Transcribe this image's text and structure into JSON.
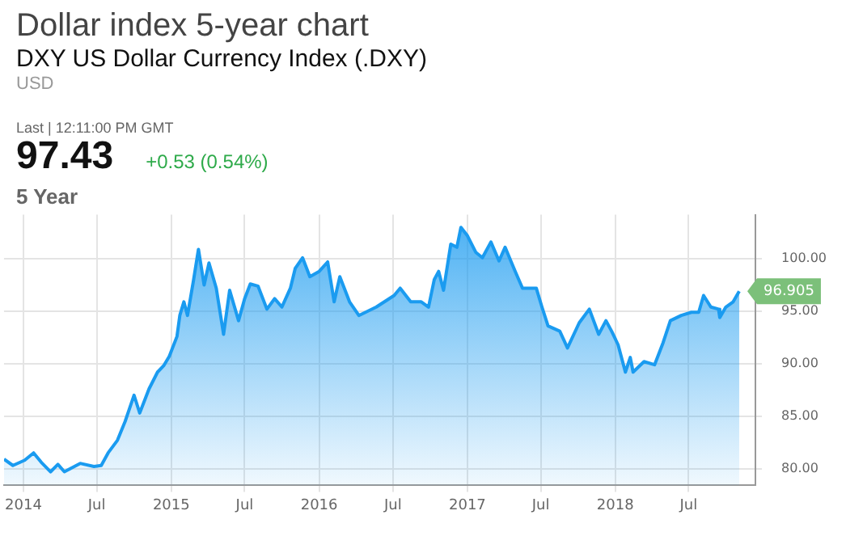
{
  "chart_data": {
    "type": "area",
    "title": "Dollar index 5-year chart",
    "subtitle": "DXY US Dollar Currency Index (.DXY)",
    "annotations": [
      "USD",
      "Last | 12:11:00 PM GMT",
      "97.43",
      "+0.53 (0.54%)",
      "5 Year",
      {
        "text": "96.905",
        "x": "2018-11-03",
        "y": 96.905
      }
    ],
    "series": [
      {
        "color": "#1a9bf0",
        "x": [
          "2013-11-14",
          "2013-12-06",
          "2014-01-04",
          "2014-01-26",
          "2014-02-14",
          "2014-03-09",
          "2014-03-27",
          "2014-04-12",
          "2014-05-21",
          "2014-06-24",
          "2014-07-12",
          "2014-07-29",
          "2014-08-21",
          "2014-09-09",
          "2014-10-01",
          "2014-10-15",
          "2014-11-07",
          "2014-11-28",
          "2014-12-13",
          "2014-12-27",
          "2015-01-15",
          "2015-01-22",
          "2015-02-01",
          "2015-02-10",
          "2015-02-25",
          "2015-03-09",
          "2015-03-23",
          "2015-04-04",
          "2015-04-22",
          "2015-05-10",
          "2015-05-25",
          "2015-06-16",
          "2015-07-01",
          "2015-07-15",
          "2015-08-03",
          "2015-08-25",
          "2015-09-13",
          "2015-10-01",
          "2015-10-22",
          "2015-11-03",
          "2015-11-21",
          "2015-12-09",
          "2016-01-01",
          "2016-01-22",
          "2016-02-07",
          "2016-02-21",
          "2016-03-16",
          "2016-04-08",
          "2016-05-21",
          "2016-07-04",
          "2016-07-19",
          "2016-08-14",
          "2016-09-09",
          "2016-09-27",
          "2016-10-11",
          "2016-10-22",
          "2016-11-03",
          "2016-11-21",
          "2016-12-06",
          "2016-12-16",
          "2017-01-01",
          "2017-01-22",
          "2017-02-07",
          "2017-02-28",
          "2017-03-20",
          "2017-04-04",
          "2017-04-29",
          "2017-05-17",
          "2017-06-20",
          "2017-07-04",
          "2017-07-19",
          "2017-08-17",
          "2017-09-05",
          "2017-10-04",
          "2017-10-29",
          "2017-11-21",
          "2017-12-09",
          "2017-12-23",
          "2018-01-08",
          "2018-01-26",
          "2018-02-07",
          "2018-02-14",
          "2018-03-13",
          "2018-04-08",
          "2018-04-29",
          "2018-05-17",
          "2018-06-13",
          "2018-07-08",
          "2018-07-26",
          "2018-08-07",
          "2018-08-25",
          "2018-09-13",
          "2018-09-16",
          "2018-10-01",
          "2018-10-19",
          "2018-11-03"
        ],
        "values": [
          80.9,
          80.3,
          80.8,
          81.5,
          80.6,
          79.7,
          80.4,
          79.7,
          80.5,
          80.2,
          80.3,
          81.5,
          82.7,
          84.5,
          87.0,
          85.3,
          87.6,
          89.2,
          89.8,
          90.7,
          92.6,
          94.6,
          95.9,
          94.6,
          98.0,
          100.9,
          97.5,
          99.6,
          97.2,
          92.8,
          97.0,
          94.1,
          96.2,
          97.6,
          97.4,
          95.2,
          96.2,
          95.4,
          97.2,
          99.1,
          100.1,
          98.3,
          98.8,
          99.7,
          95.9,
          98.3,
          95.9,
          94.6,
          95.4,
          96.5,
          97.2,
          95.9,
          95.9,
          95.4,
          98.0,
          98.8,
          97.0,
          101.4,
          101.1,
          103.0,
          102.2,
          100.6,
          100.1,
          101.6,
          99.8,
          101.1,
          98.8,
          97.2,
          97.2,
          95.4,
          93.6,
          93.1,
          91.5,
          93.9,
          95.2,
          92.8,
          94.1,
          93.1,
          91.8,
          89.2,
          90.6,
          89.2,
          90.2,
          89.9,
          92.0,
          94.1,
          94.6,
          94.9,
          94.9,
          96.5,
          95.4,
          95.2,
          94.4,
          95.4,
          95.9,
          96.9
        ]
      }
    ],
    "xlim": [
      "2013-11-14",
      "2018-12-13"
    ],
    "xticks": [
      {
        "value": "2014-01-01",
        "label": "2014"
      },
      {
        "value": "2014-07-01",
        "label": "Jul"
      },
      {
        "value": "2015-01-01",
        "label": "2015"
      },
      {
        "value": "2015-07-01",
        "label": "Jul"
      },
      {
        "value": "2016-01-01",
        "label": "2016"
      },
      {
        "value": "2016-07-01",
        "label": "Jul"
      },
      {
        "value": "2017-01-01",
        "label": "2017"
      },
      {
        "value": "2017-07-01",
        "label": "Jul"
      },
      {
        "value": "2018-01-01",
        "label": "2018"
      },
      {
        "value": "2018-07-01",
        "label": "Jul"
      }
    ],
    "ylim": [
      78.4,
      104.2
    ],
    "yticks": [
      {
        "value": 80,
        "label": "80.00"
      },
      {
        "value": 85,
        "label": "85.00"
      },
      {
        "value": 90,
        "label": "90.00"
      },
      {
        "value": 95,
        "label": "95.00"
      },
      {
        "value": 100,
        "label": "100.00"
      }
    ],
    "grid": true,
    "legend": false
  }
}
